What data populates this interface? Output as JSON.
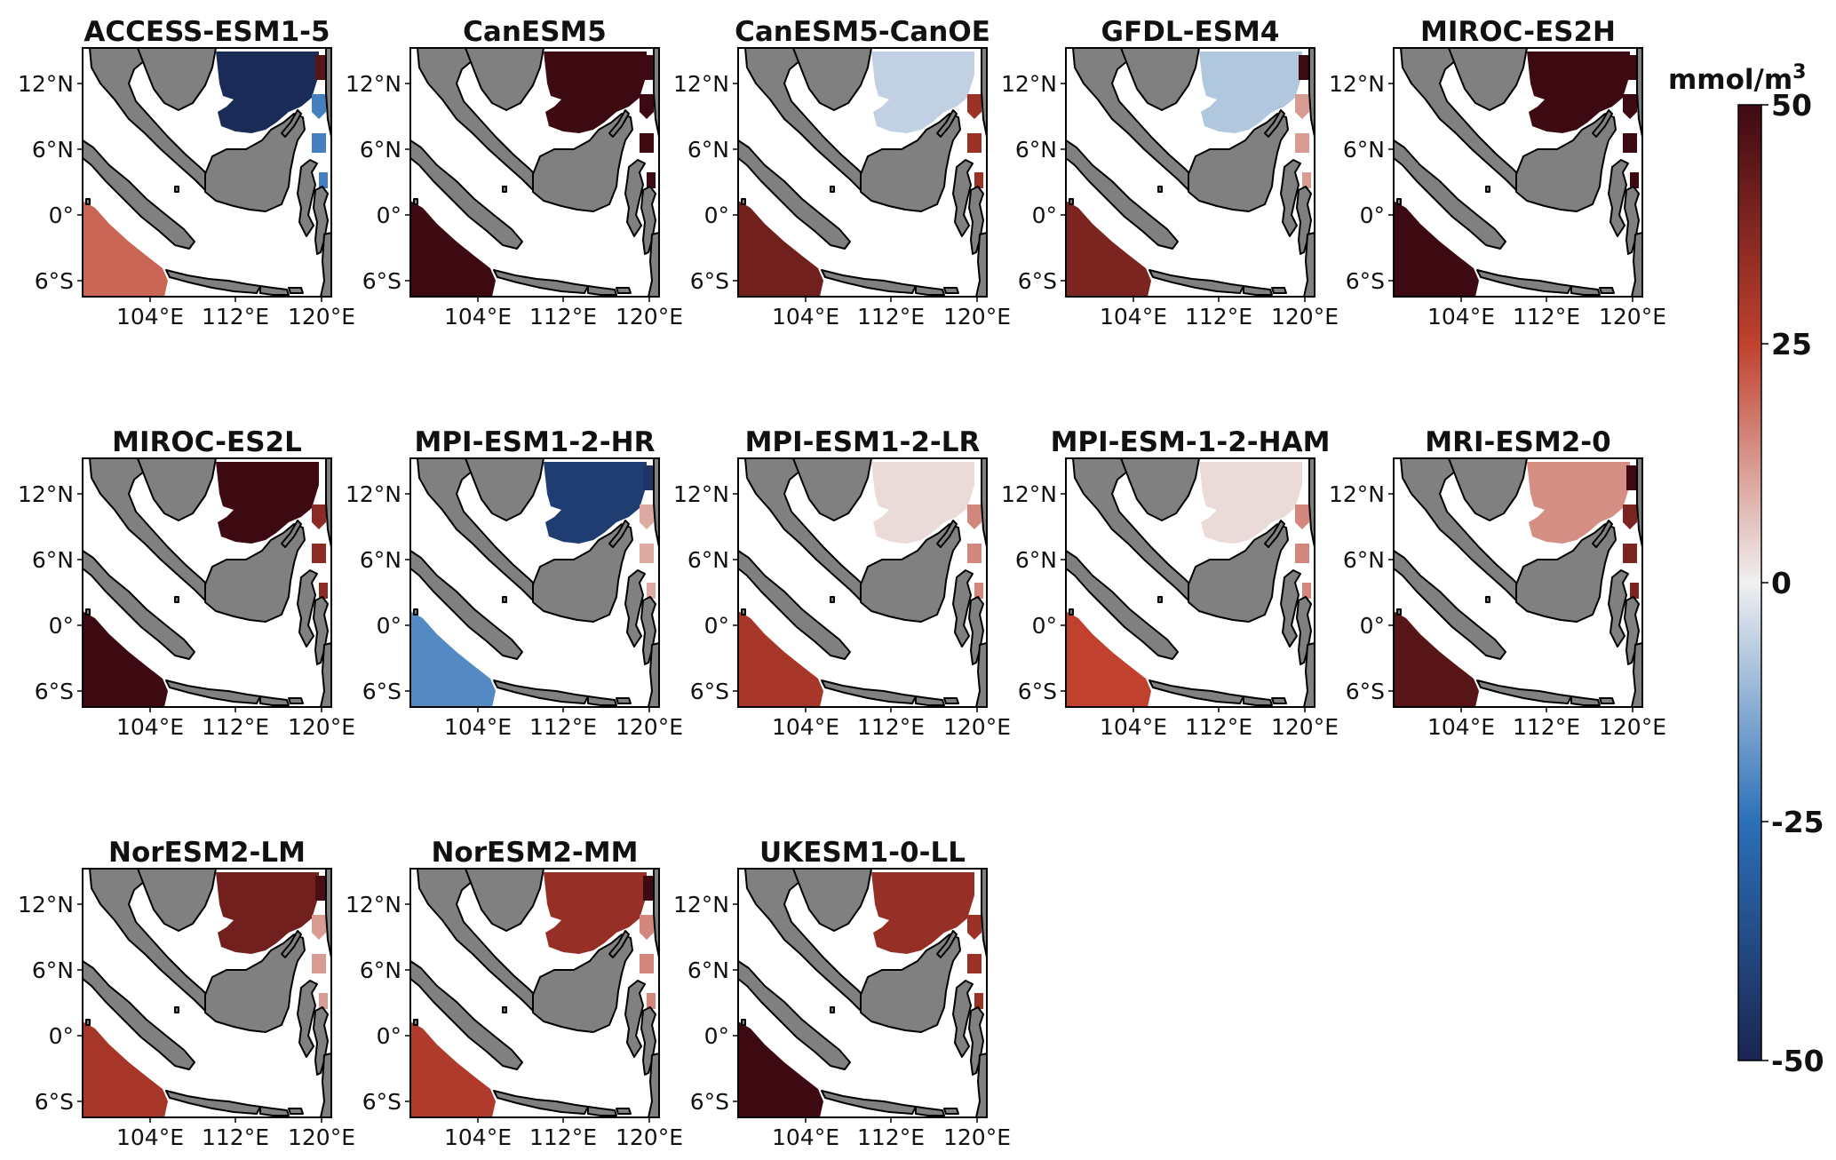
{
  "figure": {
    "type": "map-panel-grid",
    "axis_labels": {
      "lat": [
        "12°N",
        "6°N",
        "0°",
        "6°S"
      ],
      "lon": [
        "104°E",
        "112°E",
        "120°E"
      ]
    },
    "colorbar": {
      "unit_base": "mmol/m",
      "unit_exp": "3",
      "ticks": [
        "50",
        "25",
        "0",
        "-25",
        "-50"
      ],
      "range": [
        -50,
        50
      ],
      "colors": [
        "#1a2550",
        "#2c70b8",
        "#f0f0f0",
        "#c0412e",
        "#3e0a12"
      ]
    },
    "panels": [
      {
        "title": "ACCESS-ESM1-5",
        "patches": [
          {
            "zone": "scs",
            "value": -48
          },
          {
            "zone": "jsea",
            "value": 20
          },
          {
            "zone": "east",
            "value": -22
          },
          {
            "zone": "ne",
            "value": 45
          }
        ]
      },
      {
        "title": "CanESM5",
        "patches": [
          {
            "zone": "scs",
            "value": 50
          },
          {
            "zone": "jsea",
            "value": 50
          },
          {
            "zone": "east",
            "value": 50
          },
          {
            "zone": "ne",
            "value": 50
          }
        ]
      },
      {
        "title": "CanESM5-CanOE",
        "patches": [
          {
            "zone": "scs",
            "value": -6
          },
          {
            "zone": "jsea",
            "value": 40
          },
          {
            "zone": "east",
            "value": 32
          }
        ]
      },
      {
        "title": "GFDL-ESM4",
        "patches": [
          {
            "zone": "scs",
            "value": -8
          },
          {
            "zone": "jsea",
            "value": 38
          },
          {
            "zone": "east",
            "value": 12
          },
          {
            "zone": "ne",
            "value": 50
          }
        ]
      },
      {
        "title": "MIROC-ES2H",
        "patches": [
          {
            "zone": "scs",
            "value": 50
          },
          {
            "zone": "jsea",
            "value": 50
          },
          {
            "zone": "east",
            "value": 50
          },
          {
            "zone": "ne",
            "value": 50
          }
        ]
      },
      {
        "title": "MIROC-ES2L",
        "patches": [
          {
            "zone": "scs",
            "value": 50
          },
          {
            "zone": "jsea",
            "value": 50
          },
          {
            "zone": "east",
            "value": 35
          }
        ]
      },
      {
        "title": "MPI-ESM1-2-HR",
        "patches": [
          {
            "zone": "scs",
            "value": -42
          },
          {
            "zone": "jsea",
            "value": -20
          },
          {
            "zone": "east",
            "value": 10
          },
          {
            "zone": "ne",
            "value": -45
          }
        ]
      },
      {
        "title": "MPI-ESM1-2-LR",
        "patches": [
          {
            "zone": "scs",
            "value": 3
          },
          {
            "zone": "jsea",
            "value": 30
          },
          {
            "zone": "east",
            "value": 15
          }
        ]
      },
      {
        "title": "MPI-ESM-1-2-HAM",
        "patches": [
          {
            "zone": "scs",
            "value": 3
          },
          {
            "zone": "jsea",
            "value": 25
          },
          {
            "zone": "east",
            "value": 15
          }
        ]
      },
      {
        "title": "MRI-ESM2-0",
        "patches": [
          {
            "zone": "scs",
            "value": 14
          },
          {
            "zone": "jsea",
            "value": 45
          },
          {
            "zone": "east",
            "value": 38
          },
          {
            "zone": "ne",
            "value": 50
          }
        ]
      },
      {
        "title": "NorESM2-LM",
        "patches": [
          {
            "zone": "scs",
            "value": 40
          },
          {
            "zone": "jsea",
            "value": 30
          },
          {
            "zone": "east",
            "value": 12
          },
          {
            "zone": "ne",
            "value": 48
          }
        ]
      },
      {
        "title": "NorESM2-MM",
        "patches": [
          {
            "zone": "scs",
            "value": 33
          },
          {
            "zone": "jsea",
            "value": 28
          },
          {
            "zone": "east",
            "value": 15
          },
          {
            "zone": "ne",
            "value": 50
          }
        ]
      },
      {
        "title": "UKESM1-0-LL",
        "patches": [
          {
            "zone": "scs",
            "value": 33
          },
          {
            "zone": "jsea",
            "value": 50
          },
          {
            "zone": "east",
            "value": 32
          }
        ]
      }
    ]
  }
}
